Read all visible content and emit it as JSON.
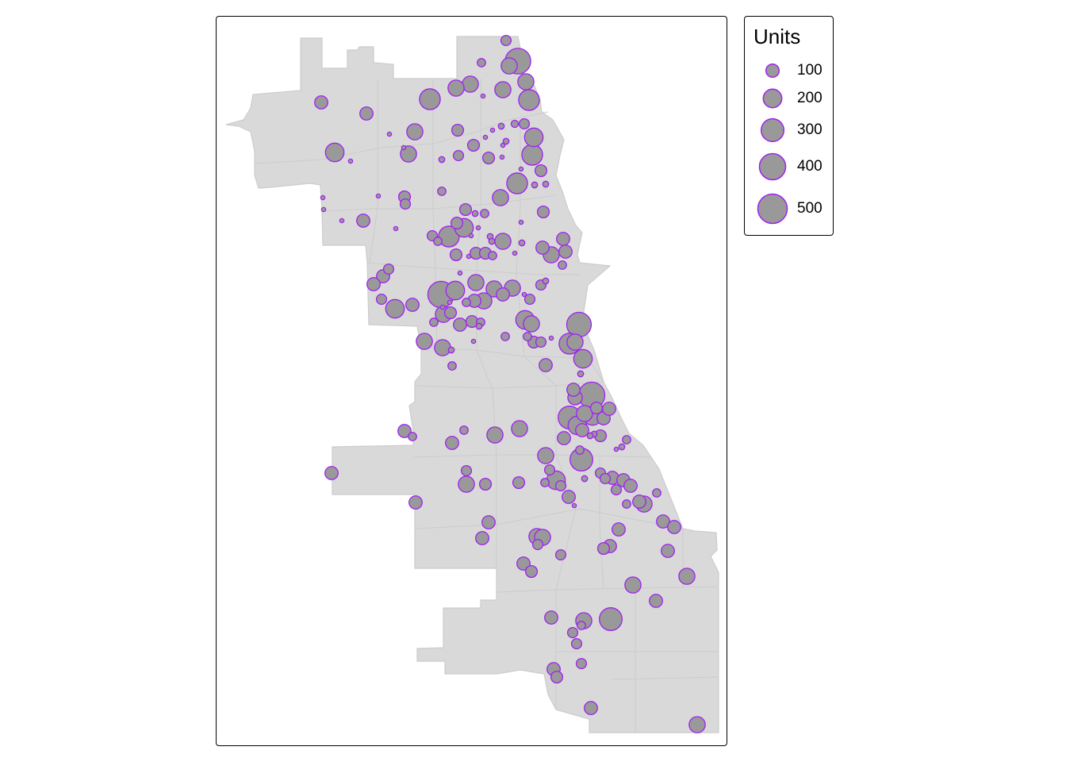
{
  "colors": {
    "region_fill": "#d9d9d9",
    "region_stroke": "#cccccc",
    "bubble_fill": "#999999",
    "bubble_stroke": "#a020f0"
  },
  "legend": {
    "title": "Units",
    "entries": [
      {
        "label": "100",
        "value": 100
      },
      {
        "label": "200",
        "value": 200
      },
      {
        "label": "300",
        "value": 300
      },
      {
        "label": "400",
        "value": 400
      },
      {
        "label": "500",
        "value": 500
      }
    ]
  },
  "chart_data": {
    "type": "bubble-map",
    "size_variable": "Units",
    "points": [
      [
        637,
        50,
        60
      ],
      [
        652,
        76,
        380
      ],
      [
        606,
        78,
        40
      ],
      [
        641,
        82,
        150
      ],
      [
        662,
        102,
        150
      ],
      [
        592,
        105,
        150
      ],
      [
        574,
        110,
        150
      ],
      [
        633,
        112,
        150
      ],
      [
        608,
        120,
        10
      ],
      [
        666,
        125,
        250
      ],
      [
        541,
        124,
        250
      ],
      [
        404,
        128,
        100
      ],
      [
        461,
        142,
        100
      ],
      [
        660,
        155,
        60
      ],
      [
        648,
        155,
        30
      ],
      [
        631,
        158,
        20
      ],
      [
        576,
        163,
        80
      ],
      [
        522,
        165,
        150
      ],
      [
        620,
        163,
        10
      ],
      [
        672,
        172,
        200
      ],
      [
        611,
        172,
        10
      ],
      [
        637,
        177,
        20
      ],
      [
        596,
        182,
        80
      ],
      [
        633,
        182,
        10
      ],
      [
        514,
        193,
        150
      ],
      [
        577,
        195,
        60
      ],
      [
        421,
        191,
        200
      ],
      [
        670,
        194,
        250
      ],
      [
        556,
        200,
        20
      ],
      [
        615,
        198,
        80
      ],
      [
        681,
        214,
        80
      ],
      [
        441,
        202,
        10
      ],
      [
        490,
        168,
        10
      ],
      [
        508,
        185,
        10
      ],
      [
        632,
        197,
        10
      ],
      [
        651,
        230,
        250
      ],
      [
        630,
        248,
        150
      ],
      [
        673,
        232,
        20
      ],
      [
        687,
        231,
        20
      ],
      [
        656,
        212,
        10
      ],
      [
        556,
        240,
        40
      ],
      [
        509,
        247,
        80
      ],
      [
        510,
        256,
        60
      ],
      [
        406,
        248,
        10
      ],
      [
        407,
        263,
        10
      ],
      [
        476,
        246,
        10
      ],
      [
        457,
        277,
        100
      ],
      [
        430,
        277,
        10
      ],
      [
        498,
        287,
        10
      ],
      [
        586,
        263,
        80
      ],
      [
        598,
        268,
        20
      ],
      [
        610,
        268,
        40
      ],
      [
        584,
        286,
        200
      ],
      [
        575,
        280,
        80
      ],
      [
        544,
        296,
        60
      ],
      [
        565,
        297,
        250
      ],
      [
        551,
        303,
        40
      ],
      [
        593,
        296,
        10
      ],
      [
        602,
        286,
        10
      ],
      [
        633,
        303,
        150
      ],
      [
        656,
        279,
        10
      ],
      [
        617,
        297,
        20
      ],
      [
        619,
        303,
        20
      ],
      [
        684,
        266,
        80
      ],
      [
        657,
        305,
        20
      ],
      [
        574,
        320,
        80
      ],
      [
        590,
        322,
        10
      ],
      [
        599,
        318,
        80
      ],
      [
        611,
        318,
        80
      ],
      [
        620,
        321,
        40
      ],
      [
        648,
        318,
        10
      ],
      [
        709,
        300,
        100
      ],
      [
        683,
        311,
        100
      ],
      [
        694,
        320,
        150
      ],
      [
        712,
        316,
        100
      ],
      [
        708,
        333,
        40
      ],
      [
        489,
        338,
        60
      ],
      [
        482,
        347,
        100
      ],
      [
        470,
        357,
        100
      ],
      [
        555,
        370,
        400
      ],
      [
        573,
        365,
        200
      ],
      [
        599,
        355,
        150
      ],
      [
        579,
        343,
        10
      ],
      [
        622,
        363,
        150
      ],
      [
        633,
        370,
        100
      ],
      [
        645,
        362,
        150
      ],
      [
        660,
        370,
        10
      ],
      [
        667,
        376,
        60
      ],
      [
        681,
        358,
        60
      ],
      [
        687,
        353,
        20
      ],
      [
        609,
        378,
        150
      ],
      [
        597,
        378,
        100
      ],
      [
        587,
        380,
        40
      ],
      [
        566,
        380,
        10
      ],
      [
        557,
        386,
        10
      ],
      [
        480,
        376,
        60
      ],
      [
        497,
        388,
        200
      ],
      [
        519,
        383,
        100
      ],
      [
        546,
        405,
        40
      ],
      [
        558,
        395,
        150
      ],
      [
        567,
        393,
        80
      ],
      [
        579,
        408,
        100
      ],
      [
        594,
        404,
        80
      ],
      [
        605,
        405,
        40
      ],
      [
        603,
        410,
        20
      ],
      [
        661,
        402,
        200
      ],
      [
        669,
        407,
        150
      ],
      [
        636,
        423,
        40
      ],
      [
        664,
        423,
        40
      ],
      [
        672,
        430,
        80
      ],
      [
        681,
        430,
        60
      ],
      [
        694,
        425,
        10
      ],
      [
        729,
        408,
        350
      ],
      [
        717,
        432,
        250
      ],
      [
        724,
        430,
        150
      ],
      [
        534,
        429,
        150
      ],
      [
        557,
        437,
        150
      ],
      [
        568,
        440,
        20
      ],
      [
        596,
        429,
        10
      ],
      [
        569,
        460,
        40
      ],
      [
        687,
        459,
        100
      ],
      [
        734,
        451,
        200
      ],
      [
        731,
        470,
        20
      ],
      [
        722,
        490,
        100
      ],
      [
        745,
        497,
        400
      ],
      [
        751,
        513,
        80
      ],
      [
        736,
        520,
        150
      ],
      [
        727,
        535,
        200
      ],
      [
        717,
        525,
        300
      ],
      [
        733,
        541,
        100
      ],
      [
        760,
        526,
        100
      ],
      [
        748,
        546,
        20
      ],
      [
        743,
        548,
        20
      ],
      [
        756,
        548,
        80
      ],
      [
        767,
        514,
        100
      ],
      [
        710,
        551,
        100
      ],
      [
        746,
        523,
        200
      ],
      [
        724,
        500,
        120
      ],
      [
        509,
        542,
        100
      ],
      [
        519,
        549,
        40
      ],
      [
        569,
        557,
        100
      ],
      [
        584,
        541,
        40
      ],
      [
        623,
        547,
        150
      ],
      [
        654,
        539,
        150
      ],
      [
        789,
        553,
        40
      ],
      [
        783,
        562,
        20
      ],
      [
        776,
        565,
        10
      ],
      [
        687,
        573,
        150
      ],
      [
        732,
        578,
        300
      ],
      [
        730,
        566,
        40
      ],
      [
        692,
        591,
        60
      ],
      [
        700,
        604,
        200
      ],
      [
        686,
        607,
        40
      ],
      [
        706,
        611,
        60
      ],
      [
        716,
        625,
        100
      ],
      [
        723,
        636,
        10
      ],
      [
        736,
        602,
        20
      ],
      [
        756,
        595,
        60
      ],
      [
        762,
        602,
        60
      ],
      [
        771,
        601,
        100
      ],
      [
        776,
        616,
        60
      ],
      [
        785,
        604,
        100
      ],
      [
        794,
        611,
        100
      ],
      [
        789,
        634,
        40
      ],
      [
        805,
        631,
        100
      ],
      [
        811,
        634,
        150
      ],
      [
        827,
        620,
        40
      ],
      [
        417,
        595,
        100
      ],
      [
        587,
        592,
        60
      ],
      [
        587,
        609,
        150
      ],
      [
        611,
        609,
        80
      ],
      [
        653,
        607,
        80
      ],
      [
        523,
        632,
        100
      ],
      [
        615,
        657,
        100
      ],
      [
        607,
        677,
        100
      ],
      [
        676,
        675,
        150
      ],
      [
        683,
        676,
        150
      ],
      [
        677,
        685,
        60
      ],
      [
        706,
        698,
        60
      ],
      [
        768,
        687,
        100
      ],
      [
        760,
        690,
        80
      ],
      [
        779,
        666,
        100
      ],
      [
        835,
        656,
        100
      ],
      [
        849,
        663,
        100
      ],
      [
        841,
        693,
        100
      ],
      [
        659,
        709,
        100
      ],
      [
        669,
        719,
        80
      ],
      [
        865,
        725,
        150
      ],
      [
        797,
        736,
        150
      ],
      [
        826,
        756,
        100
      ],
      [
        694,
        777,
        100
      ],
      [
        735,
        781,
        150
      ],
      [
        769,
        779,
        300
      ],
      [
        732,
        787,
        40
      ],
      [
        721,
        796,
        60
      ],
      [
        726,
        810,
        60
      ],
      [
        732,
        835,
        60
      ],
      [
        697,
        842,
        100
      ],
      [
        701,
        852,
        80
      ],
      [
        744,
        891,
        100
      ],
      [
        878,
        912,
        150
      ]
    ]
  }
}
